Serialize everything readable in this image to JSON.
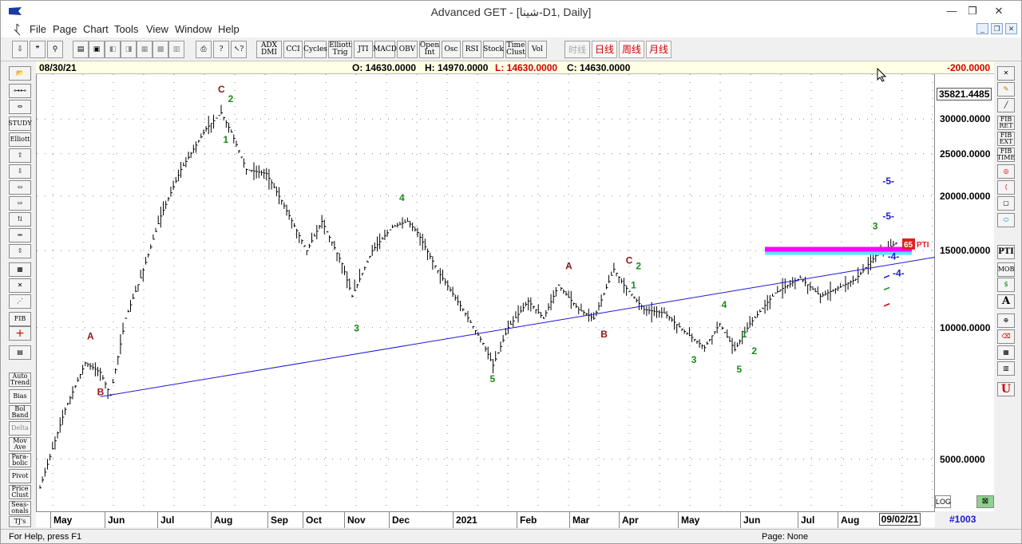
{
  "window": {
    "title": "Advanced GET - [شينا-D1, Daily]",
    "min_glyph": "—",
    "max_glyph": "❐",
    "close_glyph": "✕"
  },
  "menu": [
    "File",
    "Page",
    "Chart",
    "Tools",
    "View",
    "Window",
    "Help"
  ],
  "mdi_buttons": [
    "_",
    "❐",
    "✕"
  ],
  "toolbar": {
    "indicators": [
      {
        "id": "adx",
        "label": "ADX DMI"
      },
      {
        "id": "cci",
        "label": "CCI"
      },
      {
        "id": "cycles",
        "label": "Cycles"
      },
      {
        "id": "elliott-trig",
        "label": "Elliott Trig"
      },
      {
        "id": "jti",
        "label": "JTI"
      },
      {
        "id": "macd",
        "label": "MACD"
      },
      {
        "id": "obv",
        "label": "OBV"
      },
      {
        "id": "open-int",
        "label": "Open Int"
      },
      {
        "id": "osc",
        "label": "Osc"
      },
      {
        "id": "rsi",
        "label": "RSI"
      },
      {
        "id": "stoch",
        "label": "Stock"
      },
      {
        "id": "time-clust",
        "label": "Time Clust"
      },
      {
        "id": "vol",
        "label": "Vol"
      }
    ],
    "timeframes": [
      {
        "id": "hour",
        "label": "时线",
        "disabled": true
      },
      {
        "id": "day",
        "label": "日线",
        "disabled": false
      },
      {
        "id": "week",
        "label": "周线",
        "disabled": false
      },
      {
        "id": "month",
        "label": "月线",
        "disabled": false
      }
    ]
  },
  "left_tools": [
    "STUDY",
    "Elliott",
    "Auto Trend",
    "Bias",
    "Bol Band",
    "Delta",
    "Mov Ave",
    "Para- bolic",
    "Pivot",
    "Price Clust",
    "Seas- onals",
    "TJ's"
  ],
  "right_tools": [
    "FIB RET",
    "FIB EXT",
    "FIB TIME",
    "MOB"
  ],
  "infobar": {
    "date": "08/30/21",
    "open": "O: 14630.0000",
    "high": "H: 14970.0000",
    "low": "L: 14630.0000",
    "close": "C: 14630.0000",
    "offset": "-200.0000"
  },
  "colors": {
    "accent_red": "#d00000",
    "trendline": "#1a1acc",
    "magenta": "#ff00ff",
    "cyan": "#5fe0ff",
    "wave_green": "#1a8a1a",
    "wave_red": "#8b1a1a"
  },
  "chart_data": {
    "type": "bar",
    "y_scale": "log",
    "ylim": [
      3800,
      38000
    ],
    "y_ticks": [
      {
        "v": 30000,
        "label": "30000.0000"
      },
      {
        "v": 25000,
        "label": "25000.0000"
      },
      {
        "v": 20000,
        "label": "20000.0000"
      },
      {
        "v": 15000,
        "label": "15000.0000"
      },
      {
        "v": 10000,
        "label": "10000.0000"
      },
      {
        "v": 5000,
        "label": "5000.0000"
      }
    ],
    "current_price_label": "35821.4485",
    "x_months": [
      "May",
      "Jun",
      "Jul",
      "Aug",
      "Sep",
      "Oct",
      "Nov",
      "Dec",
      "2021",
      "Feb",
      "Mar",
      "Apr",
      "May",
      "Jun",
      "Jul",
      "Aug"
    ],
    "x_last_date": "09/02/21",
    "x_counter": "#1003",
    "price_path": [
      [
        0,
        4300
      ],
      [
        5,
        6500
      ],
      [
        9,
        8300
      ],
      [
        12,
        7900
      ],
      [
        14,
        7000
      ],
      [
        17,
        10500
      ],
      [
        20,
        13000
      ],
      [
        24,
        18000
      ],
      [
        28,
        23000
      ],
      [
        33,
        28500
      ],
      [
        36,
        31000
      ],
      [
        38,
        28000
      ],
      [
        41,
        23000
      ],
      [
        45,
        22500
      ],
      [
        48,
        19500
      ],
      [
        53,
        15000
      ],
      [
        56,
        17500
      ],
      [
        60,
        14000
      ],
      [
        62,
        11800
      ],
      [
        66,
        15000
      ],
      [
        70,
        17000
      ],
      [
        73,
        17500
      ],
      [
        75,
        16500
      ],
      [
        79,
        13500
      ],
      [
        84,
        11000
      ],
      [
        88,
        9200
      ],
      [
        90,
        8200
      ],
      [
        93,
        10000
      ],
      [
        97,
        11500
      ],
      [
        100,
        10500
      ],
      [
        103,
        12500
      ],
      [
        107,
        11000
      ],
      [
        110,
        10500
      ],
      [
        114,
        13600
      ],
      [
        116,
        12500
      ],
      [
        120,
        11000
      ],
      [
        124,
        10800
      ],
      [
        128,
        9800
      ],
      [
        132,
        9000
      ],
      [
        135,
        10200
      ],
      [
        138,
        8900
      ],
      [
        141,
        10200
      ],
      [
        146,
        12000
      ],
      [
        151,
        13000
      ],
      [
        155,
        11800
      ],
      [
        159,
        12400
      ],
      [
        162,
        12900
      ],
      [
        166,
        14600
      ],
      [
        170,
        15600
      ]
    ],
    "pti_label": "65",
    "pti_text": "PTI",
    "waves": [
      {
        "label": "C",
        "i": 36,
        "price": 34500,
        "color": "red"
      },
      {
        "label": "2",
        "i": 38,
        "price": 32800,
        "color": "green"
      },
      {
        "label": "1",
        "i": 37,
        "price": 26500,
        "color": "green"
      },
      {
        "label": "A",
        "i": 10,
        "price": 9400,
        "color": "red"
      },
      {
        "label": "B",
        "i": 12,
        "price": 7000,
        "color": "red"
      },
      {
        "label": "4",
        "i": 72,
        "price": 19500,
        "color": "green"
      },
      {
        "label": "3",
        "i": 63,
        "price": 9800,
        "color": "green"
      },
      {
        "label": "5",
        "i": 90,
        "price": 7500,
        "color": "green"
      },
      {
        "label": "A",
        "i": 105,
        "price": 13600,
        "color": "red"
      },
      {
        "label": "B",
        "i": 112,
        "price": 9500,
        "color": "red"
      },
      {
        "label": "C",
        "i": 117,
        "price": 14000,
        "color": "red"
      },
      {
        "label": "2",
        "i": 119,
        "price": 13600,
        "color": "green"
      },
      {
        "label": "1",
        "i": 118,
        "price": 12300,
        "color": "green"
      },
      {
        "label": "4",
        "i": 136,
        "price": 11100,
        "color": "green"
      },
      {
        "label": "3",
        "i": 130,
        "price": 8300,
        "color": "green"
      },
      {
        "label": "1",
        "i": 140,
        "price": 9500,
        "color": "green"
      },
      {
        "label": "2",
        "i": 142,
        "price": 8700,
        "color": "green"
      },
      {
        "label": "5",
        "i": 139,
        "price": 7900,
        "color": "green"
      },
      {
        "label": "3",
        "i": 166,
        "price": 16800,
        "color": "green"
      },
      {
        "label": "-5-",
        "i": 168,
        "price": 21300,
        "color": "blue"
      },
      {
        "label": "-5-",
        "i": 168,
        "price": 17700,
        "color": "blue"
      },
      {
        "label": "-4-",
        "i": 169,
        "price": 14300,
        "color": "blue"
      },
      {
        "label": "-4-",
        "i": 170,
        "price": 13100,
        "color": "blue"
      }
    ]
  },
  "status": {
    "help": "For Help, press F1",
    "page": "Page: None"
  },
  "axis_buttons": {
    "log": "LOG"
  }
}
